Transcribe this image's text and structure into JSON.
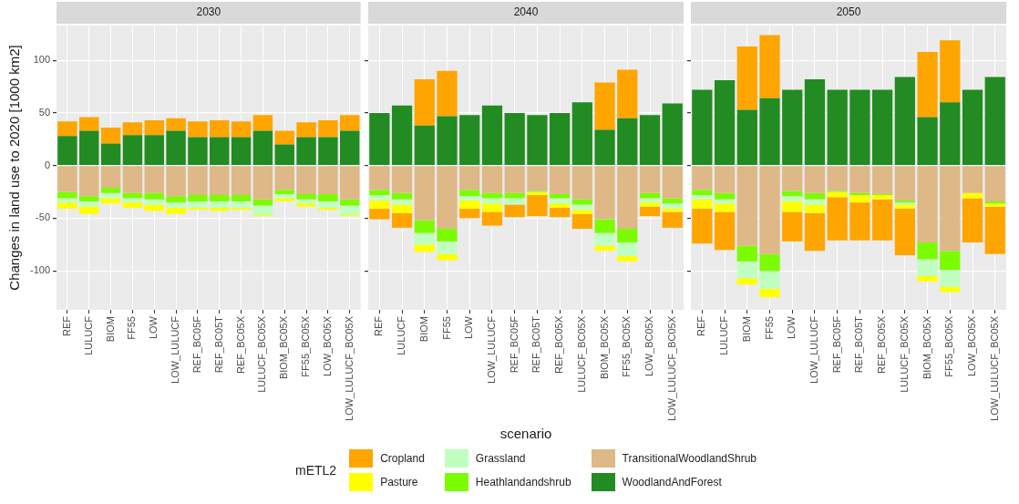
{
  "chart_data": [
    {
      "type": "bar",
      "title": "2030",
      "ylabel": "Changes in land use to 2020 [1000 km2]",
      "stacked": true,
      "grid": true,
      "ylim": [
        -137,
        133
      ],
      "yticks": [
        -100,
        -50,
        0,
        50,
        100
      ],
      "categories": [
        "REF",
        "LULUCF",
        "BIOM",
        "FF55",
        "LOW",
        "LOW_LULUCF",
        "REF_BC05F",
        "REF_BC05T",
        "REF_BC05X",
        "LULUCF_BC05X",
        "BIOM_BC05X",
        "FF55_BC05X",
        "LOW_BC05X",
        "LOW_LULUCF_BC05X"
      ],
      "series": [
        {
          "color": "#228b22",
          "values": [
            28,
            33,
            21,
            29,
            29,
            33,
            27,
            27,
            27,
            33,
            20,
            27,
            27,
            33
          ]
        },
        {
          "color": "#deb887",
          "values": [
            -25,
            -29,
            -21,
            -26,
            -26,
            -29,
            -28,
            -28,
            -28,
            -32,
            -23,
            -27,
            -27,
            -32
          ]
        },
        {
          "color": "#7cfc00",
          "values": [
            -6,
            -5,
            -5,
            -5,
            -6,
            -6,
            -6,
            -6,
            -6,
            -6,
            -4,
            -5,
            -7,
            -6
          ]
        },
        {
          "color": "#c1ffc1",
          "values": [
            -4,
            -5,
            -5,
            -4,
            -5,
            -5,
            -6,
            -6,
            -6,
            -9,
            -4,
            -4,
            -6,
            -9
          ]
        },
        {
          "color": "#ffff00",
          "values": [
            -6,
            -7,
            -5,
            -5,
            -6,
            -6,
            -2,
            -3,
            -2,
            -1,
            -3,
            -3,
            -2,
            -1
          ]
        },
        {
          "color": "#ffa500",
          "values": [
            14,
            13,
            15,
            12,
            14,
            12,
            15,
            16,
            15,
            15,
            13,
            14,
            16,
            15
          ]
        }
      ]
    },
    {
      "type": "bar",
      "title": "2040",
      "xlabel": "scenario",
      "legend_title": "mETL2",
      "legend": "bottom",
      "tick_labels": "x",
      "stacked": true,
      "grid": true,
      "ylim": [
        -137,
        133
      ],
      "yticks": [
        -100,
        -50,
        0,
        50,
        100
      ],
      "categories": [
        "REF",
        "LULUCF",
        "BIOM",
        "FF55",
        "LOW",
        "LOW_LULUCF",
        "REF_BC05F",
        "REF_BC05T",
        "REF_BC05X",
        "LULUCF_BC05X",
        "BIOM_BC05X",
        "FF55_BC05X",
        "LOW_BC05X",
        "LOW_LULUCF_BC05X"
      ],
      "series": [
        {
          "name": "WoodlandAndForest",
          "color": "#228b22",
          "values": [
            50,
            57,
            38,
            47,
            48,
            57,
            50,
            48,
            50,
            60,
            34,
            45,
            48,
            59
          ]
        },
        {
          "name": "TransitionalWoodlandShrub",
          "color": "#deb887",
          "values": [
            -23,
            -26,
            -52,
            -60,
            -23,
            -26,
            -26,
            -24,
            -27,
            -32,
            -51,
            -60,
            -26,
            -31
          ]
        },
        {
          "name": "Heathlandandshrub",
          "color": "#7cfc00",
          "values": [
            -5,
            -6,
            -12,
            -12,
            -6,
            -5,
            -5,
            -1,
            -4,
            -5,
            -13,
            -13,
            -5,
            -5
          ]
        },
        {
          "name": "Grassland",
          "color": "#c1ffc1",
          "values": [
            -5,
            -5,
            -11,
            -12,
            -4,
            -5,
            -6,
            null,
            -5,
            -5,
            -12,
            -13,
            -4,
            -5
          ]
        },
        {
          "name": "Pasture",
          "color": "#ffff00",
          "values": [
            -8,
            -8,
            -7,
            -6,
            -8,
            -8,
            0,
            -3,
            -4,
            -4,
            -5,
            -5,
            -4,
            -3
          ]
        },
        {
          "name": "Cropland",
          "color": "#ffa500",
          "values": [
            -10,
            -14,
            44,
            43,
            -9,
            -13,
            -12,
            -20,
            -9,
            -14,
            45,
            46,
            -9,
            -15
          ]
        }
      ]
    },
    {
      "type": "bar",
      "title": "2050",
      "tick_labels": "x",
      "stacked": true,
      "grid": true,
      "ylim": [
        -137,
        133
      ],
      "yticks": [
        -100,
        -50,
        0,
        50,
        100
      ],
      "categories": [
        "REF",
        "LULUCF",
        "BIOM",
        "FF55",
        "LOW",
        "LOW_LULUCF",
        "REF_BC05F",
        "REF_BC05T",
        "REF_BC05X",
        "LULUCF_BC05X",
        "BIOM_BC05X",
        "FF55_BC05X",
        "LOW_BC05X",
        "LOW_LULUCF_BC05X"
      ],
      "series": [
        {
          "color": "#228b22",
          "values": [
            72,
            81,
            53,
            64,
            72,
            82,
            72,
            72,
            72,
            84,
            46,
            60,
            72,
            84
          ]
        },
        {
          "color": "#deb887",
          "values": [
            -23,
            -26,
            -76,
            -84,
            -24,
            -26,
            -24,
            -26,
            -27,
            -33,
            -73,
            -81,
            -26,
            -34
          ]
        },
        {
          "color": "#7cfc00",
          "values": [
            -5,
            -6,
            -15,
            -16,
            -5,
            -6,
            -1,
            -2,
            -1,
            -2,
            -16,
            -18,
            0,
            -2
          ]
        },
        {
          "color": "#c1ffc1",
          "values": [
            -4,
            -4,
            -16,
            -17,
            -5,
            -5,
            null,
            null,
            null,
            -2,
            -16,
            -16,
            0,
            null
          ]
        },
        {
          "color": "#ffff00",
          "values": [
            -9,
            -8,
            -6,
            -8,
            -10,
            -8,
            -5,
            -7,
            -4,
            -4,
            -5,
            -5,
            -5,
            -3
          ]
        },
        {
          "color": "#ffa500",
          "values": [
            -33,
            -36,
            60,
            60,
            -28,
            -36,
            -41,
            -36,
            -39,
            -44,
            62,
            59,
            -42,
            -45
          ]
        }
      ]
    }
  ]
}
